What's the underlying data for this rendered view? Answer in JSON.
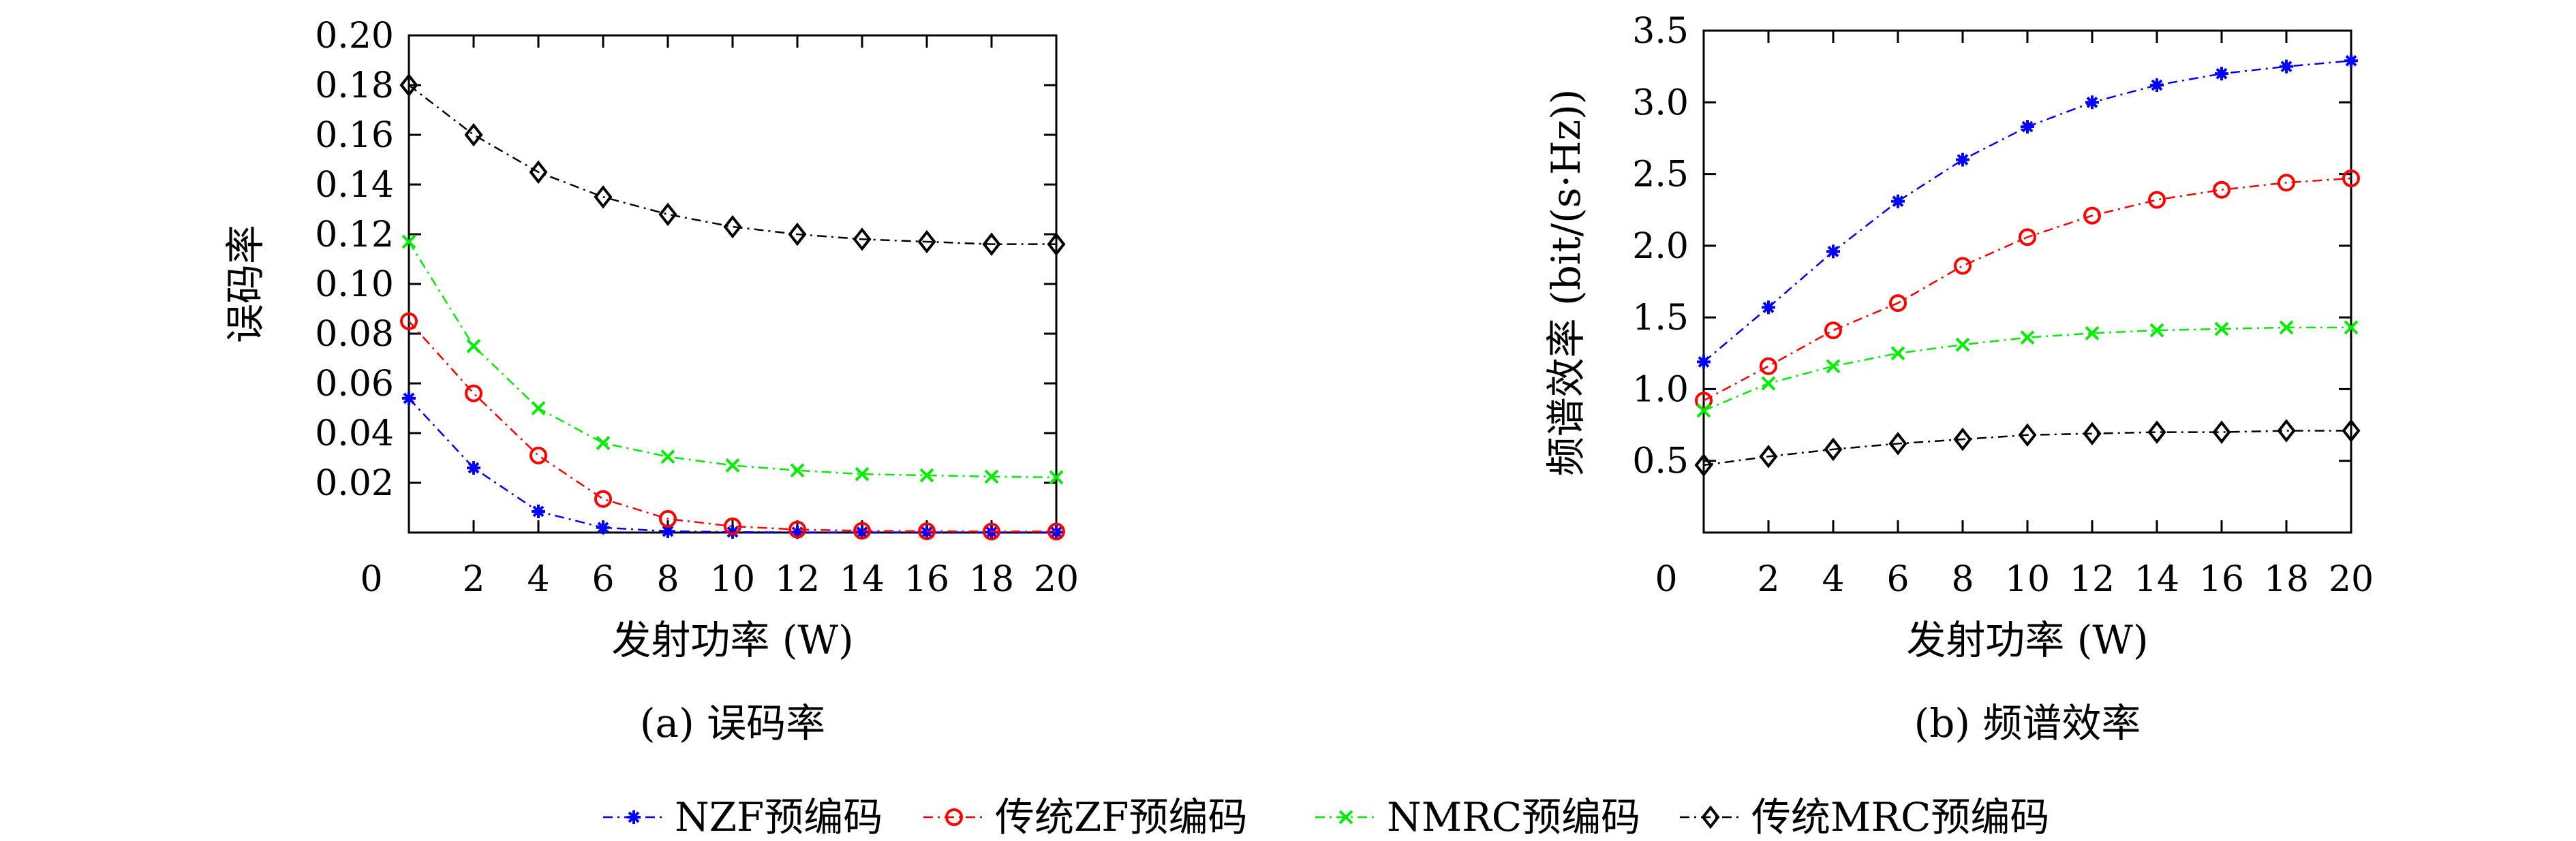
{
  "legend": [
    {
      "label": "NZF预编码",
      "color": "#0000ff",
      "marker": "star",
      "dash": "line-dot"
    },
    {
      "label": "传统ZF预编码",
      "color": "#ff0000",
      "marker": "circle",
      "dash": "line-dot"
    },
    {
      "label": "NMRC预编码",
      "color": "#00ee00",
      "marker": "cross",
      "dash": "line-dot"
    },
    {
      "label": "传统MRC预编码",
      "color": "#000000",
      "marker": "diamond",
      "dash": "line-dot"
    }
  ],
  "chart_data": [
    {
      "type": "line",
      "caption": "(a) 误码率",
      "xlabel": "发射功率 (W)",
      "ylabel": "误码率",
      "xlim": [
        0,
        20
      ],
      "ylim": [
        0,
        0.2
      ],
      "xticks": [
        "0",
        "2",
        "4",
        "6",
        "8",
        "10",
        "12",
        "14",
        "16",
        "18",
        "20"
      ],
      "yticks": [
        "0.02",
        "0.04",
        "0.06",
        "0.08",
        "0.10",
        "0.12",
        "0.14",
        "0.16",
        "0.18",
        "0.20"
      ],
      "x": [
        0,
        2,
        4,
        6,
        8,
        10,
        12,
        14,
        16,
        18,
        20
      ],
      "series": [
        {
          "name": "NZF预编码",
          "values": [
            0.054,
            0.026,
            0.0085,
            0.002,
            0.0005,
            0.0002,
            0.0001,
            0.0001,
            0.0001,
            0.0001,
            0.0001
          ]
        },
        {
          "name": "传统ZF预编码",
          "values": [
            0.085,
            0.056,
            0.031,
            0.0135,
            0.0055,
            0.0025,
            0.0012,
            0.0007,
            0.0005,
            0.0004,
            0.0004
          ]
        },
        {
          "name": "NMRC预编码",
          "values": [
            0.117,
            0.075,
            0.05,
            0.036,
            0.0305,
            0.027,
            0.025,
            0.0235,
            0.023,
            0.0225,
            0.0222
          ]
        },
        {
          "name": "传统MRC预编码",
          "values": [
            0.18,
            0.16,
            0.145,
            0.135,
            0.128,
            0.123,
            0.12,
            0.118,
            0.117,
            0.116,
            0.116
          ]
        }
      ]
    },
    {
      "type": "line",
      "caption": "(b) 频谱效率",
      "xlabel": "发射功率 (W)",
      "ylabel": "频谱效率 (bit/(s·Hz))",
      "xlim": [
        0,
        20
      ],
      "ylim": [
        0,
        3.5
      ],
      "xticks": [
        "0",
        "2",
        "4",
        "6",
        "8",
        "10",
        "12",
        "14",
        "16",
        "18",
        "20"
      ],
      "yticks": [
        "0.5",
        "1.0",
        "1.5",
        "2.0",
        "2.5",
        "3.0",
        "3.5"
      ],
      "x": [
        0,
        2,
        4,
        6,
        8,
        10,
        12,
        14,
        16,
        18,
        20
      ],
      "series": [
        {
          "name": "NZF预编码",
          "values": [
            1.19,
            1.57,
            1.96,
            2.31,
            2.6,
            2.83,
            3.0,
            3.12,
            3.2,
            3.25,
            3.29
          ]
        },
        {
          "name": "传统ZF预编码",
          "values": [
            0.92,
            1.16,
            1.41,
            1.6,
            1.86,
            2.06,
            2.21,
            2.32,
            2.39,
            2.44,
            2.47
          ]
        },
        {
          "name": "NMRC预编码",
          "values": [
            0.85,
            1.04,
            1.16,
            1.25,
            1.31,
            1.36,
            1.39,
            1.41,
            1.42,
            1.43,
            1.43
          ]
        },
        {
          "name": "传统MRC预编码",
          "values": [
            0.47,
            0.53,
            0.58,
            0.62,
            0.65,
            0.68,
            0.69,
            0.7,
            0.7,
            0.71,
            0.71
          ]
        }
      ]
    }
  ]
}
